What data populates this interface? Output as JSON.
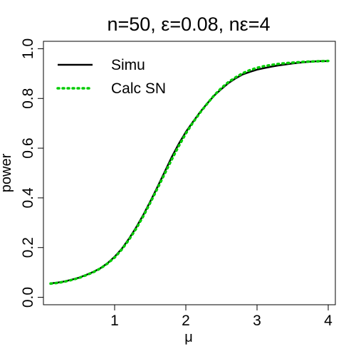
{
  "chart_data": {
    "type": "line",
    "title": "n=50, ε=0.08, nε=4",
    "xlabel": "μ",
    "ylabel": "power",
    "xlim": [
      0.0,
      4.1
    ],
    "ylim": [
      -0.03,
      1.03
    ],
    "x_ticks": [
      1,
      2,
      3,
      4
    ],
    "y_ticks": [
      0.0,
      0.2,
      0.4,
      0.6,
      0.8,
      1.0
    ],
    "x_tick_labels": [
      "1",
      "2",
      "3",
      "4"
    ],
    "y_tick_labels": [
      "0.0",
      "0.2",
      "0.4",
      "0.6",
      "0.8",
      "1.0"
    ],
    "grid": false,
    "legend_position": "top-left",
    "x": [
      0.1,
      0.2,
      0.3,
      0.4,
      0.5,
      0.6,
      0.7,
      0.8,
      0.9,
      1.0,
      1.1,
      1.2,
      1.3,
      1.4,
      1.5,
      1.6,
      1.7,
      1.8,
      1.9,
      2.0,
      2.1,
      2.2,
      2.3,
      2.4,
      2.5,
      2.6,
      2.7,
      2.8,
      2.9,
      3.0,
      3.1,
      3.2,
      3.3,
      3.4,
      3.5,
      3.6,
      3.7,
      3.8,
      3.9,
      4.0
    ],
    "series": [
      {
        "name": "Simu",
        "style": "solid",
        "color": "#000000",
        "values": [
          0.056,
          0.059,
          0.064,
          0.071,
          0.079,
          0.09,
          0.102,
          0.117,
          0.137,
          0.163,
          0.195,
          0.235,
          0.28,
          0.33,
          0.385,
          0.443,
          0.503,
          0.563,
          0.617,
          0.665,
          0.706,
          0.745,
          0.78,
          0.812,
          0.838,
          0.862,
          0.881,
          0.897,
          0.907,
          0.916,
          0.922,
          0.928,
          0.933,
          0.937,
          0.941,
          0.944,
          0.947,
          0.949,
          0.95,
          0.95
        ]
      },
      {
        "name": "Calc SN",
        "style": "dotted",
        "color": "#00cc00",
        "values": [
          0.055,
          0.058,
          0.063,
          0.07,
          0.078,
          0.089,
          0.101,
          0.116,
          0.136,
          0.16,
          0.192,
          0.231,
          0.275,
          0.325,
          0.38,
          0.437,
          0.495,
          0.553,
          0.608,
          0.659,
          0.703,
          0.743,
          0.779,
          0.813,
          0.842,
          0.866,
          0.885,
          0.902,
          0.914,
          0.923,
          0.93,
          0.935,
          0.939,
          0.942,
          0.944,
          0.946,
          0.948,
          0.949,
          0.95,
          0.951
        ]
      }
    ]
  }
}
